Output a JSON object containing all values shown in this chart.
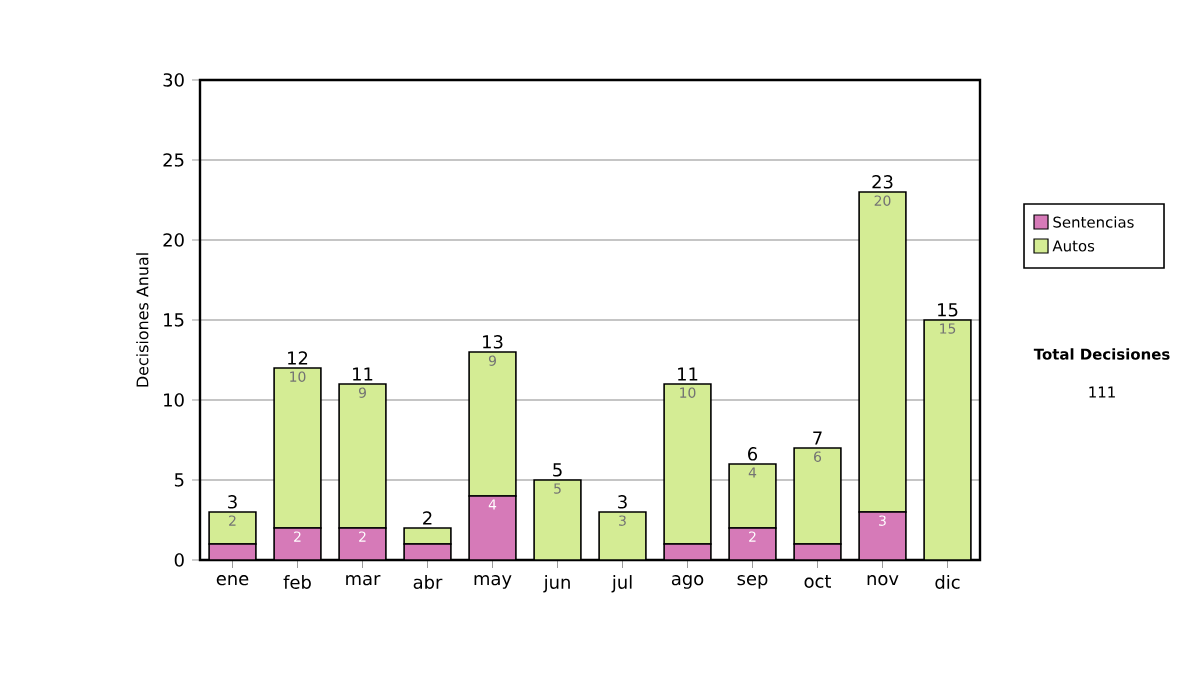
{
  "chart_data": {
    "type": "bar",
    "stacked": true,
    "ylabel": "Decisiones Anual",
    "categories": [
      "ene",
      "feb",
      "mar",
      "abr",
      "may",
      "jun",
      "jul",
      "ago",
      "sep",
      "oct",
      "nov",
      "dic"
    ],
    "series": [
      {
        "name": "Sentencias",
        "color": "#d67ab8",
        "values": [
          1,
          2,
          2,
          1,
          4,
          0,
          0,
          1,
          2,
          1,
          3,
          0
        ],
        "value_labels": [
          null,
          "2",
          "2",
          null,
          "4",
          null,
          null,
          null,
          "2",
          null,
          "3",
          null
        ]
      },
      {
        "name": "Autos",
        "color": "#d4ec94",
        "values": [
          2,
          10,
          9,
          1,
          9,
          5,
          3,
          10,
          4,
          6,
          20,
          15
        ],
        "value_labels": [
          "2",
          "10",
          "9",
          null,
          "9",
          "5",
          "3",
          "10",
          "4",
          "6",
          "20",
          "15"
        ]
      }
    ],
    "totals": [
      "3",
      "12",
      "11",
      "2",
      "13",
      "5",
      "3",
      "11",
      "6",
      "7",
      "23",
      "15"
    ],
    "ylim": [
      0,
      30
    ],
    "yticks": [
      0,
      5,
      10,
      15,
      20,
      25,
      30
    ],
    "grid": "y",
    "legend": "right",
    "annotations": [
      "Total Decisiones",
      "111"
    ]
  }
}
